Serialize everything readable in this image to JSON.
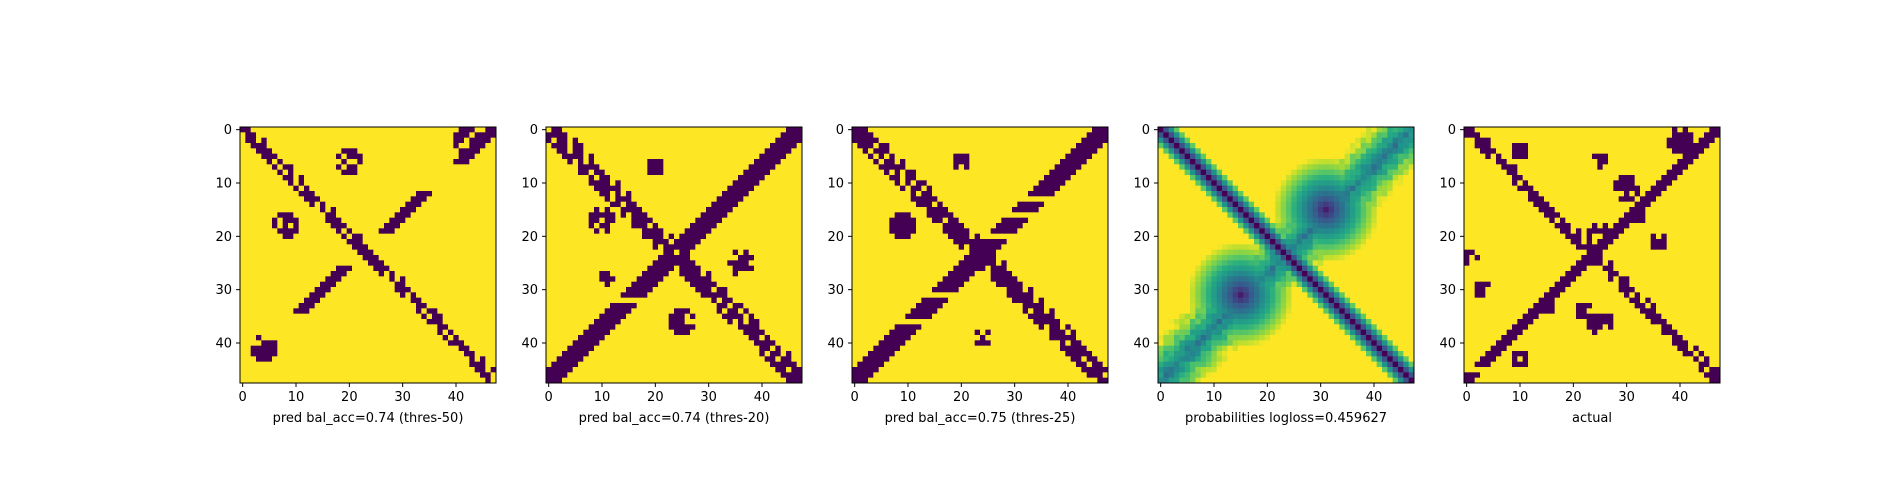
{
  "colors": {
    "background": "#ffffff",
    "low": "#440154",
    "high": "#fde725",
    "axis": "#000000"
  },
  "chart_data": [
    {
      "type": "heatmap",
      "id": "panel-1",
      "xlabel": "pred bal_acc=0.74 (thres-50)",
      "grid_size": 48,
      "xlim": [
        -0.5,
        47.5
      ],
      "ylim": [
        47.5,
        -0.5
      ],
      "xticks": [
        0,
        10,
        20,
        30,
        40
      ],
      "yticks": [
        0,
        10,
        20,
        30,
        40
      ],
      "colormap": "viridis",
      "binary": true,
      "features": {
        "main_diagonal_width": 2,
        "anti_diagonal_segments": [
          {
            "from": [
              0,
              47
            ],
            "to": [
              2,
              45
            ]
          },
          {
            "from": [
              3,
              44
            ],
            "to": [
              6,
              41
            ]
          },
          {
            "from": [
              12,
              34
            ],
            "to": [
              19,
              27
            ]
          },
          {
            "from": [
              26,
              19
            ],
            "to": [
              34,
              10
            ]
          }
        ],
        "blobs": [
          {
            "row": 6,
            "col": 20
          },
          {
            "row": 18,
            "col": 8
          },
          {
            "row": 41,
            "col": 4
          },
          {
            "row": 2,
            "col": 42
          }
        ]
      }
    },
    {
      "type": "heatmap",
      "id": "panel-2",
      "xlabel": "pred bal_acc=0.74 (thres-20)",
      "grid_size": 48,
      "xlim": [
        -0.5,
        47.5
      ],
      "ylim": [
        47.5,
        -0.5
      ],
      "xticks": [
        0,
        10,
        20,
        30,
        40
      ],
      "yticks": [
        0,
        10,
        20,
        30,
        40
      ],
      "colormap": "viridis",
      "binary": true,
      "features": {
        "main_diagonal_width": 3,
        "anti_diagonal_width": 2,
        "blobs": [
          {
            "row": 7,
            "col": 20
          },
          {
            "row": 17,
            "col": 10
          },
          {
            "row": 28,
            "col": 11
          },
          {
            "row": 36,
            "col": 25
          },
          {
            "row": 25,
            "col": 36
          }
        ]
      }
    },
    {
      "type": "heatmap",
      "id": "panel-3",
      "xlabel": "pred bal_acc=0.75 (thres-25)",
      "grid_size": 48,
      "xlim": [
        -0.5,
        47.5
      ],
      "ylim": [
        47.5,
        -0.5
      ],
      "xticks": [
        0,
        10,
        20,
        30,
        40
      ],
      "yticks": [
        0,
        10,
        20,
        30,
        40
      ],
      "colormap": "viridis",
      "binary": true,
      "features": {
        "main_diagonal_width": 3,
        "anti_diagonal_width": 2,
        "blobs": [
          {
            "row": 6,
            "col": 20
          },
          {
            "row": 18,
            "col": 9
          },
          {
            "row": 39,
            "col": 24
          }
        ]
      }
    },
    {
      "type": "heatmap",
      "id": "panel-4",
      "xlabel": "probabilities logloss=0.459627",
      "grid_size": 48,
      "xlim": [
        -0.5,
        47.5
      ],
      "ylim": [
        47.5,
        -0.5
      ],
      "xticks": [
        0,
        10,
        20,
        30,
        40
      ],
      "yticks": [
        0,
        10,
        20,
        30,
        40
      ],
      "colormap": "viridis",
      "binary": false,
      "value_range": [
        0,
        1
      ],
      "features": {
        "main_diagonal_value": 0.0,
        "anti_diagonal_value": 0.35,
        "hotspots": [
          {
            "row": 15,
            "col": 31,
            "value": 0.1
          },
          {
            "row": 31,
            "col": 15,
            "value": 0.1
          }
        ]
      }
    },
    {
      "type": "heatmap",
      "id": "panel-5",
      "xlabel": "actual",
      "grid_size": 48,
      "xlim": [
        -0.5,
        47.5
      ],
      "ylim": [
        47.5,
        -0.5
      ],
      "xticks": [
        0,
        10,
        20,
        30,
        40
      ],
      "yticks": [
        0,
        10,
        20,
        30,
        40
      ],
      "colormap": "viridis",
      "binary": true,
      "features": {
        "main_diagonal_width": 2,
        "anti_diagonal_width": 1,
        "blobs": [
          {
            "row": 3,
            "col": 3
          },
          {
            "row": 4,
            "col": 10
          },
          {
            "row": 2,
            "col": 40
          },
          {
            "row": 6,
            "col": 25
          },
          {
            "row": 11,
            "col": 30
          },
          {
            "row": 16,
            "col": 32
          },
          {
            "row": 21,
            "col": 36
          },
          {
            "row": 24,
            "col": 1
          },
          {
            "row": 30,
            "col": 3
          },
          {
            "row": 33,
            "col": 15
          },
          {
            "row": 34,
            "col": 22
          },
          {
            "row": 36,
            "col": 25
          },
          {
            "row": 43,
            "col": 10
          },
          {
            "row": 20,
            "col": 25
          }
        ]
      }
    }
  ]
}
